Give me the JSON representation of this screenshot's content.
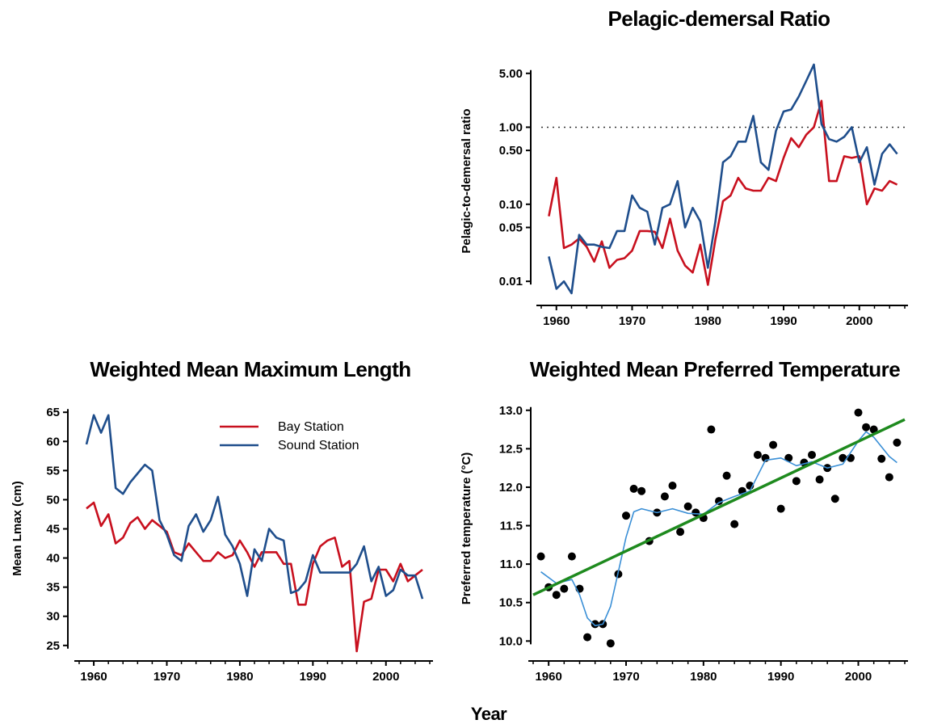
{
  "footer": {
    "xlabel": "Year"
  },
  "colors": {
    "bay": "#c8101e",
    "sound": "#1f4e8c",
    "trend": "#1e8a1e",
    "smooth": "#3a8fd6",
    "points": "#000000"
  },
  "chart_data": [
    {
      "id": "pd",
      "type": "line",
      "title": "Pelagic-demersal Ratio",
      "ylabel": "Pelagic-to-demersal ratio",
      "yscale": "log",
      "xlim": [
        1958,
        2006
      ],
      "ylim": [
        0.0065,
        7.5
      ],
      "xticks": [
        1960,
        1970,
        1980,
        1990,
        2000
      ],
      "yticks": [
        0.01,
        0.05,
        0.1,
        0.5,
        1.0,
        5.0
      ],
      "ytick_labels": [
        "0.01",
        "0.05",
        "0.10",
        "0.50",
        "1.00",
        "5.00"
      ],
      "reference_line": 1.0,
      "x": [
        1959,
        1960,
        1961,
        1962,
        1963,
        1964,
        1965,
        1966,
        1967,
        1968,
        1969,
        1970,
        1971,
        1972,
        1973,
        1974,
        1975,
        1976,
        1977,
        1978,
        1979,
        1980,
        1981,
        1982,
        1983,
        1984,
        1985,
        1986,
        1987,
        1988,
        1989,
        1990,
        1991,
        1992,
        1993,
        1994,
        1995,
        1996,
        1997,
        1998,
        1999,
        2000,
        2001,
        2002,
        2003,
        2004,
        2005
      ],
      "series": [
        {
          "name": "Bay Station",
          "key": "bay",
          "values": [
            0.07,
            0.22,
            0.027,
            0.03,
            0.036,
            0.028,
            0.018,
            0.033,
            0.015,
            0.019,
            0.02,
            0.025,
            0.045,
            0.045,
            0.044,
            0.027,
            0.065,
            0.025,
            0.016,
            0.013,
            0.03,
            0.009,
            0.035,
            0.11,
            0.13,
            0.22,
            0.16,
            0.15,
            0.15,
            0.22,
            0.2,
            0.4,
            0.72,
            0.55,
            0.8,
            1.0,
            2.2,
            0.2,
            0.2,
            0.42,
            0.4,
            0.42,
            0.1,
            0.16,
            0.15,
            0.2,
            0.18
          ]
        },
        {
          "name": "Sound Station",
          "key": "sound",
          "values": [
            0.021,
            0.008,
            0.01,
            0.007,
            0.04,
            0.03,
            0.03,
            0.028,
            0.027,
            0.045,
            0.045,
            0.13,
            0.09,
            0.08,
            0.03,
            0.09,
            0.1,
            0.2,
            0.05,
            0.09,
            0.06,
            0.015,
            0.06,
            0.35,
            0.42,
            0.65,
            0.65,
            1.4,
            0.35,
            0.28,
            0.9,
            1.6,
            1.7,
            2.5,
            4.0,
            6.5,
            1.1,
            0.7,
            0.65,
            0.75,
            1.0,
            0.35,
            0.55,
            0.18,
            0.45,
            0.6,
            0.45
          ]
        }
      ]
    },
    {
      "id": "lm",
      "type": "line",
      "title": "Weighted Mean Maximum Length",
      "ylabel": "Mean Lmax (cm)",
      "xlim": [
        1958,
        2006
      ],
      "ylim": [
        24,
        66
      ],
      "xticks": [
        1960,
        1970,
        1980,
        1990,
        2000
      ],
      "yticks": [
        25,
        30,
        35,
        40,
        45,
        50,
        55,
        60,
        65
      ],
      "legend": {
        "position": "top-center",
        "entries": [
          "Bay Station",
          "Sound Station"
        ]
      },
      "x": [
        1959,
        1960,
        1961,
        1962,
        1963,
        1964,
        1965,
        1966,
        1967,
        1968,
        1969,
        1970,
        1971,
        1972,
        1973,
        1974,
        1975,
        1976,
        1977,
        1978,
        1979,
        1980,
        1981,
        1982,
        1983,
        1984,
        1985,
        1986,
        1987,
        1988,
        1989,
        1990,
        1991,
        1992,
        1993,
        1994,
        1995,
        1996,
        1997,
        1998,
        1999,
        2000,
        2001,
        2002,
        2003,
        2004,
        2005
      ],
      "series": [
        {
          "name": "Bay Station",
          "key": "bay",
          "values": [
            48.5,
            49.5,
            45.5,
            47.5,
            42.5,
            43.5,
            46.0,
            47.0,
            45.0,
            46.5,
            45.5,
            44.5,
            41.0,
            40.5,
            42.5,
            41.0,
            39.5,
            39.5,
            41.0,
            40.0,
            40.5,
            43.0,
            41.0,
            38.5,
            41.0,
            41.0,
            41.0,
            39.0,
            39.0,
            32.0,
            32.0,
            39.0,
            42.0,
            43.0,
            43.5,
            38.5,
            39.5,
            24.0,
            32.5,
            33.0,
            38.0,
            38.0,
            36.0,
            39.0,
            36.0,
            37.0,
            38.0
          ]
        },
        {
          "name": "Sound Station",
          "key": "sound",
          "values": [
            59.5,
            64.5,
            61.5,
            64.5,
            52.0,
            51.0,
            53.0,
            54.5,
            56.0,
            55.0,
            46.5,
            44.0,
            40.5,
            39.5,
            45.5,
            47.5,
            44.5,
            46.5,
            50.5,
            44.0,
            42.0,
            39.0,
            33.5,
            41.5,
            39.5,
            45.0,
            43.5,
            43.0,
            34.0,
            34.5,
            36.0,
            40.5,
            37.5,
            37.5,
            37.5,
            37.5,
            37.5,
            39.0,
            42.0,
            36.0,
            38.5,
            33.5,
            34.5,
            38.0,
            37.0,
            37.0,
            33.0
          ]
        }
      ]
    },
    {
      "id": "tp",
      "type": "scatter",
      "title": "Weighted Mean Preferred Temperature",
      "ylabel": "Preferred temperature (°C)",
      "xlim": [
        1958,
        2006
      ],
      "ylim": [
        9.93,
        13.05
      ],
      "xticks": [
        1960,
        1970,
        1980,
        1990,
        2000
      ],
      "yticks": [
        10.0,
        10.5,
        11.0,
        11.5,
        12.0,
        12.5,
        13.0
      ],
      "ytick_labels": [
        "10.0",
        "10.5",
        "11.0",
        "11.5",
        "12.0",
        "12.5",
        "13.0"
      ],
      "points": {
        "x": [
          1959,
          1960,
          1961,
          1962,
          1963,
          1964,
          1965,
          1966,
          1967,
          1968,
          1969,
          1970,
          1971,
          1972,
          1973,
          1974,
          1975,
          1976,
          1977,
          1978,
          1979,
          1980,
          1981,
          1982,
          1983,
          1984,
          1985,
          1986,
          1987,
          1988,
          1989,
          1990,
          1991,
          1992,
          1993,
          1994,
          1995,
          1996,
          1997,
          1998,
          1999,
          2000,
          2001,
          2002,
          2003,
          2004,
          2005
        ],
        "y": [
          11.1,
          10.7,
          10.6,
          10.68,
          11.1,
          10.68,
          10.05,
          10.22,
          10.22,
          9.97,
          10.87,
          11.63,
          11.98,
          11.95,
          11.3,
          11.67,
          11.88,
          12.02,
          11.42,
          11.75,
          11.67,
          11.6,
          12.75,
          11.82,
          12.15,
          11.52,
          11.95,
          12.02,
          12.42,
          12.38,
          12.55,
          11.72,
          12.38,
          12.08,
          12.32,
          12.42,
          12.1,
          12.25,
          11.85,
          12.38,
          12.38,
          12.97,
          12.78,
          12.75,
          12.37,
          12.13,
          12.58
        ]
      },
      "smooth": {
        "x": [
          1959,
          1961,
          1963,
          1964,
          1965,
          1966,
          1967,
          1968,
          1969,
          1970,
          1971,
          1972,
          1974,
          1976,
          1978,
          1980,
          1982,
          1984,
          1986,
          1988,
          1990,
          1992,
          1994,
          1996,
          1998,
          2000,
          2001,
          2002,
          2004,
          2005
        ],
        "y": [
          10.9,
          10.75,
          10.8,
          10.6,
          10.3,
          10.2,
          10.22,
          10.45,
          10.9,
          11.35,
          11.68,
          11.72,
          11.67,
          11.72,
          11.66,
          11.65,
          11.8,
          11.88,
          11.95,
          12.35,
          12.38,
          12.28,
          12.33,
          12.25,
          12.3,
          12.6,
          12.72,
          12.65,
          12.4,
          12.32
        ]
      },
      "trend": {
        "x": [
          1958,
          2006
        ],
        "y": [
          10.6,
          12.88
        ]
      }
    }
  ]
}
